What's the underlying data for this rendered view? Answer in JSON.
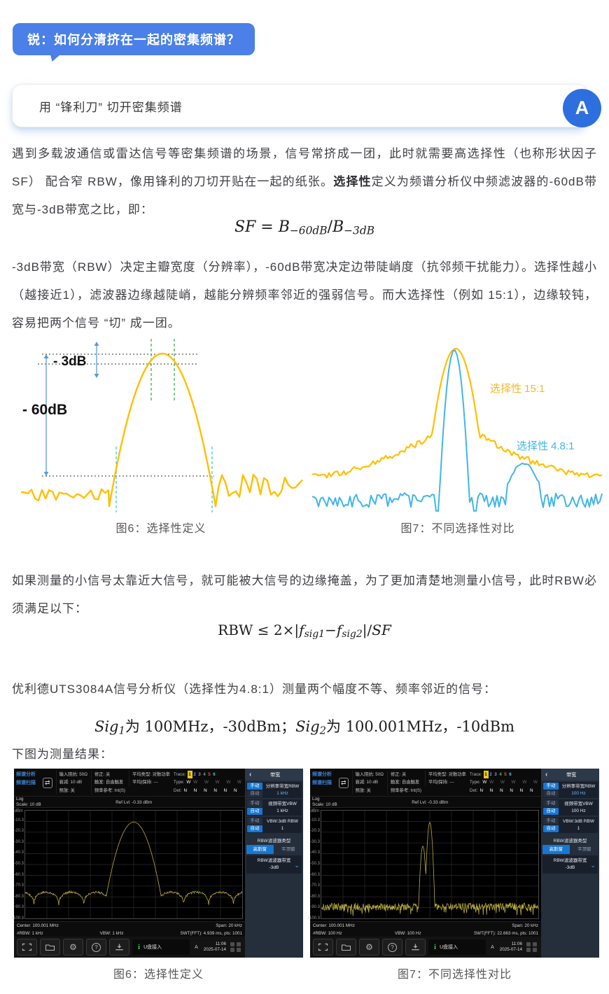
{
  "colors": {
    "accent_blue": "#4a80e8",
    "chart_yellow": "#FFC000",
    "chart_blue": "#41b6e6",
    "panel_blue": "#1777d2",
    "trace_yellow": "#b9ac3e"
  },
  "icons": {
    "sweep": "⇄",
    "gear": "⚙",
    "help": "?",
    "info": "i",
    "back": "‹",
    "chevron": "⌄",
    "answer": "A"
  },
  "article": {
    "badge": "锐：如何分清挤在一起的密集频谱？",
    "question": "用 “锋利刀” 切开密集频谱",
    "p1a": "遇到多载波通信或雷达信号等密集频谱的场景，信号常挤成一团，此时就需要高选择性（也称形状因子SF） 配合窄 RBW，像用锋利的刀切开贴在一起的纸张。",
    "p1_bold": "选择性",
    "p1b": "定义为频谱分析仪中频滤波器的-60dB带宽与-3dB带宽之比，即：",
    "f1": {
      "a": "SF",
      "eq": " = ",
      "b": "B",
      "s1": "−60dB",
      "c": "/",
      "d": "B",
      "s2": "−3dB"
    },
    "p2": "-3dB带宽（RBW）决定主瓣宽度（分辨率），-60dB带宽决定边带陡峭度（抗邻频干扰能力）。选择性越小（越接近1），滤波器边缘越陡峭，越能分辨频率邻近的强弱信号。而大选择性（例如 15:1），边缘较钝，容易把两个信号 “切” 成一团。",
    "p3": "如果测量的小信号太靠近大信号，就可能被大信号的边缘掩盖，为了更加清楚地测量小信号，此时RBW必须满足以下：",
    "f2": {
      "a": "RBW ≤ 2×|",
      "b": "f",
      "s1": "sig1",
      "c": "−",
      "d": "f",
      "s2": "sig2",
      "e": "|/",
      "g": "SF"
    },
    "p4": "优利德UTS3084A信号分析仪（选择性为4.8:1）测量两个幅度不等、频率邻近的信号：",
    "f3": {
      "a": "Sig",
      "s1": "1",
      "b": "为 100MHz，-30dBm；",
      "c": "Sig",
      "s2": "2",
      "d": "为 100.001MHz，-10dBm"
    },
    "p5": "下图为测量结果："
  },
  "fig6": {
    "caption": "图6：选择性定义",
    "label_3db": "- 3dB",
    "label_60db": "- 60dB",
    "curve_color": "#FFC000"
  },
  "fig7": {
    "caption": "图7：不同选择性对比",
    "legend_yellow": "选择性 15:1",
    "legend_blue": "选择性  4.8:1"
  },
  "chart_data": [
    {
      "type": "line",
      "title": "图6：选择性定义",
      "annotations": [
        "- 3dB",
        "- 60dB"
      ],
      "description": "single yellow filter response: main lobe with noise floor; dashed markers at -3dB and -60dB bandwidths"
    },
    {
      "type": "line",
      "title": "图7：不同选择性对比",
      "series": [
        {
          "name": "选择性 15:1",
          "color": "#FFC000",
          "shape": "wide skirt"
        },
        {
          "name": "选择性 4.8:1",
          "color": "#41b6e6",
          "shape": "steep narrow lobe with sidelobe"
        }
      ]
    },
    {
      "type": "line",
      "title": "UTS3084A RBW 1 kHz",
      "ylabel": "dBm",
      "ylim": [
        -100.3,
        -0.3
      ],
      "peaks": [
        {
          "x": "100.001 MHz",
          "y": -11
        }
      ],
      "span": "20 kHz"
    },
    {
      "type": "line",
      "title": "UTS3084A RBW 100 Hz",
      "ylabel": "dBm",
      "ylim": [
        -100.3,
        -0.3
      ],
      "peaks": [
        {
          "x": "100 MHz",
          "y": -33
        },
        {
          "x": "100.001 MHz",
          "y": -11
        }
      ],
      "span": "20 kHz"
    }
  ],
  "analyzers": [
    {
      "caption": "图6：选择性定义",
      "mode1": "频谱分析",
      "mode2": "频谱扫描",
      "status_col1": [
        "输入阻抗: 50Ω",
        "衰减: 10 dB",
        "预放: 关"
      ],
      "status_col2": [
        "修正: 关",
        "触发: 自由触发",
        "频率参考: Int(S)"
      ],
      "status_col3": [
        "平均类型: 对数功率",
        "平均|保持: ---"
      ],
      "trace_label": "Trace:",
      "trace_nums": [
        "1",
        "2",
        "3",
        "4",
        "5",
        "6"
      ],
      "type_label": "Type:",
      "type_first": "W",
      "type_rest": "W W W W W",
      "det_label": "Det:",
      "det_vals": "N N N N N N",
      "log": "Log",
      "scale": "Scale: 10 dB",
      "ref_lvl": "Ref Lvl: -0.33 dBm",
      "y_unit": "dBm",
      "y_ticks": [
        "-10.3",
        "-20.3",
        "-30.3",
        "-40.3",
        "-50.3",
        "-60.3",
        "-70.3",
        "-80.3",
        "-90.3",
        "-100.3"
      ],
      "center": "Center: 100.001 MHz",
      "span": "Span: 20 kHz",
      "rbw": "#RBW: 1 kHz",
      "vbw": "VBW: 1 kHz",
      "swt": "SWT(FFT): 4.939 ms, pts: 1001",
      "usb_text": "U盘接入",
      "corner": "A",
      "time": "11:06",
      "date": "2025-07-14",
      "menu": {
        "title": "带宽",
        "rows": [
          {
            "manual": "手动",
            "auto": "自动",
            "selected": "manual",
            "label": "分辨率带宽RBW",
            "value": "1 kHz"
          },
          {
            "manual": "手动",
            "auto": "自动",
            "selected": "auto",
            "label": "视频带宽VBW",
            "value": "1 kHz"
          },
          {
            "manual": "手动",
            "auto": "自动",
            "selected": "auto",
            "label": "VBW:3dB RBW",
            "value": "1"
          }
        ],
        "type_label": "RBW滤波器类型",
        "opt1": "高斯窗",
        "opt2": "平顶窗",
        "selected_opt": "高斯窗",
        "bw_label": "RBW滤波器带宽",
        "bw_value": "-3dB"
      }
    },
    {
      "caption": "图7：不同选择性对比",
      "mode1": "频谱分析",
      "mode2": "频谱扫描",
      "status_col1": [
        "输入阻抗: 50Ω",
        "衰减: 10 dB",
        "预放: 关"
      ],
      "status_col2": [
        "修正: 关",
        "触发: 自由触发",
        "频率参考: Int(S)"
      ],
      "status_col3": [
        "平均类型: 对数功率",
        "平均|保持: ---"
      ],
      "trace_label": "Trace:",
      "trace_nums": [
        "1",
        "2",
        "3",
        "4",
        "5",
        "6"
      ],
      "type_label": "Type:",
      "type_first": "W",
      "type_rest": "W W W W W",
      "det_label": "Det:",
      "det_vals": "N N N N N N",
      "log": "Log",
      "scale": "Scale: 10 dB",
      "ref_lvl": "Ref Lvl: -0.33 dBm",
      "y_unit": "dBm",
      "y_ticks": [
        "-10.3",
        "-20.3",
        "-30.3",
        "-40.3",
        "-50.3",
        "-60.3",
        "-70.3",
        "-80.3",
        "-90.3",
        "-100.3"
      ],
      "center": "Center: 100.001 MHz",
      "span": "Span: 20 kHz",
      "rbw": "#RBW: 100 Hz",
      "vbw": "VBW: 100 Hz",
      "swt": "SWT(FFT): 22.663 ms, pts: 1001",
      "usb_text": "U盘接入",
      "corner": "A",
      "time": "11:06",
      "date": "2025-07-14",
      "menu": {
        "title": "带宽",
        "rows": [
          {
            "manual": "手动",
            "auto": "自动",
            "selected": "manual",
            "label": "分辨率带宽RBW",
            "value": "100 Hz"
          },
          {
            "manual": "手动",
            "auto": "自动",
            "selected": "auto",
            "label": "视频带宽VBW",
            "value": "100 Hz"
          },
          {
            "manual": "手动",
            "auto": "自动",
            "selected": "auto",
            "label": "VBW:3dB RBW",
            "value": "1"
          }
        ],
        "type_label": "RBW滤波器类型",
        "opt1": "高斯窗",
        "opt2": "平顶窗",
        "selected_opt": "高斯窗",
        "bw_label": "RBW滤波器带宽",
        "bw_value": "-3dB"
      }
    }
  ]
}
